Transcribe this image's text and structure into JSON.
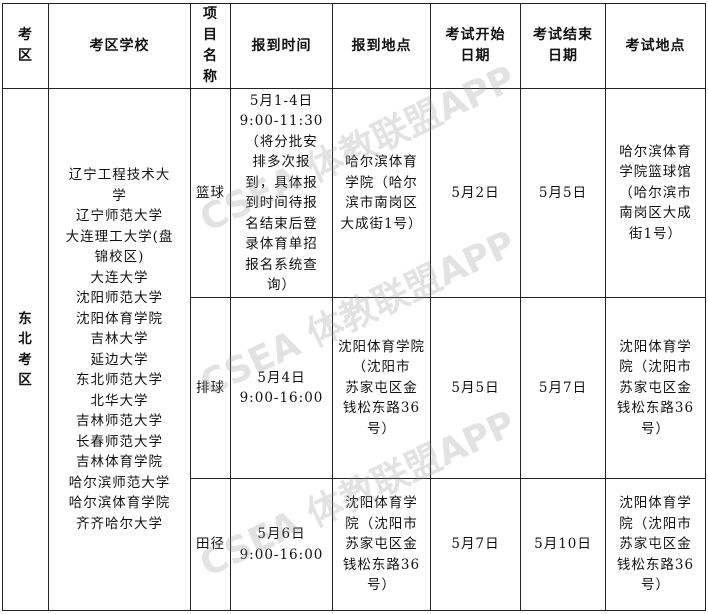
{
  "headers": [
    "考\n区",
    "考区学校",
    "项\n目\n名\n称",
    "报到时间",
    "报到地点",
    "考试开始\n日期",
    "考试结束\n日期",
    "考试地点"
  ],
  "region": "东\n北\n考\n区",
  "schools": "辽宁工程技术大\n学\n辽宁师范大学\n大连理工大学(盘\n锦校区)\n大连大学\n沈阳师范大学\n沈阳体育学院\n吉林大学\n延边大学\n东北师范大学\n北华大学\n吉林师范大学\n长春师范大学\n吉林体育学院\n哈尔滨师范大学\n哈尔滨体育学院\n齐齐哈尔大学",
  "rows": [
    {
      "sport": "篮球",
      "report_time": "5月1-4日\n9:00-11:30\n（将分批安\n排多次报\n到，具体报\n到时间待报\n名结束后登\n录体育单招\n报名系统查\n询）",
      "report_place": "哈尔滨体育\n学院（哈尔\n滨市南岗区\n大成街1号）",
      "start": "5月2日",
      "end": "5月5日",
      "exam_place": "哈尔滨体育\n学院篮球馆\n（哈尔滨市\n南岗区大成\n街1号）"
    },
    {
      "sport": "排球",
      "report_time": "5月4日\n9:00-16:00",
      "report_place": "沈阳体育学院\n（沈阳市\n苏家屯区金\n钱松东路36\n号）",
      "start": "5月5日",
      "end": "5月7日",
      "exam_place": "沈阳体育学\n院（沈阳市\n苏家屯区金\n钱松东路36\n号）"
    },
    {
      "sport": "田径",
      "report_time": "5月6日\n9:00-16:00",
      "report_place": "沈阳体育学\n院（沈阳市\n苏家屯区金\n钱松东路36\n号）",
      "start": "5月7日",
      "end": "5月10日",
      "exam_place": "沈阳体育学\n院（沈阳市\n苏家屯区金\n钱松东路36\n号）"
    }
  ],
  "watermark": "CSEA 体教联盟APP"
}
